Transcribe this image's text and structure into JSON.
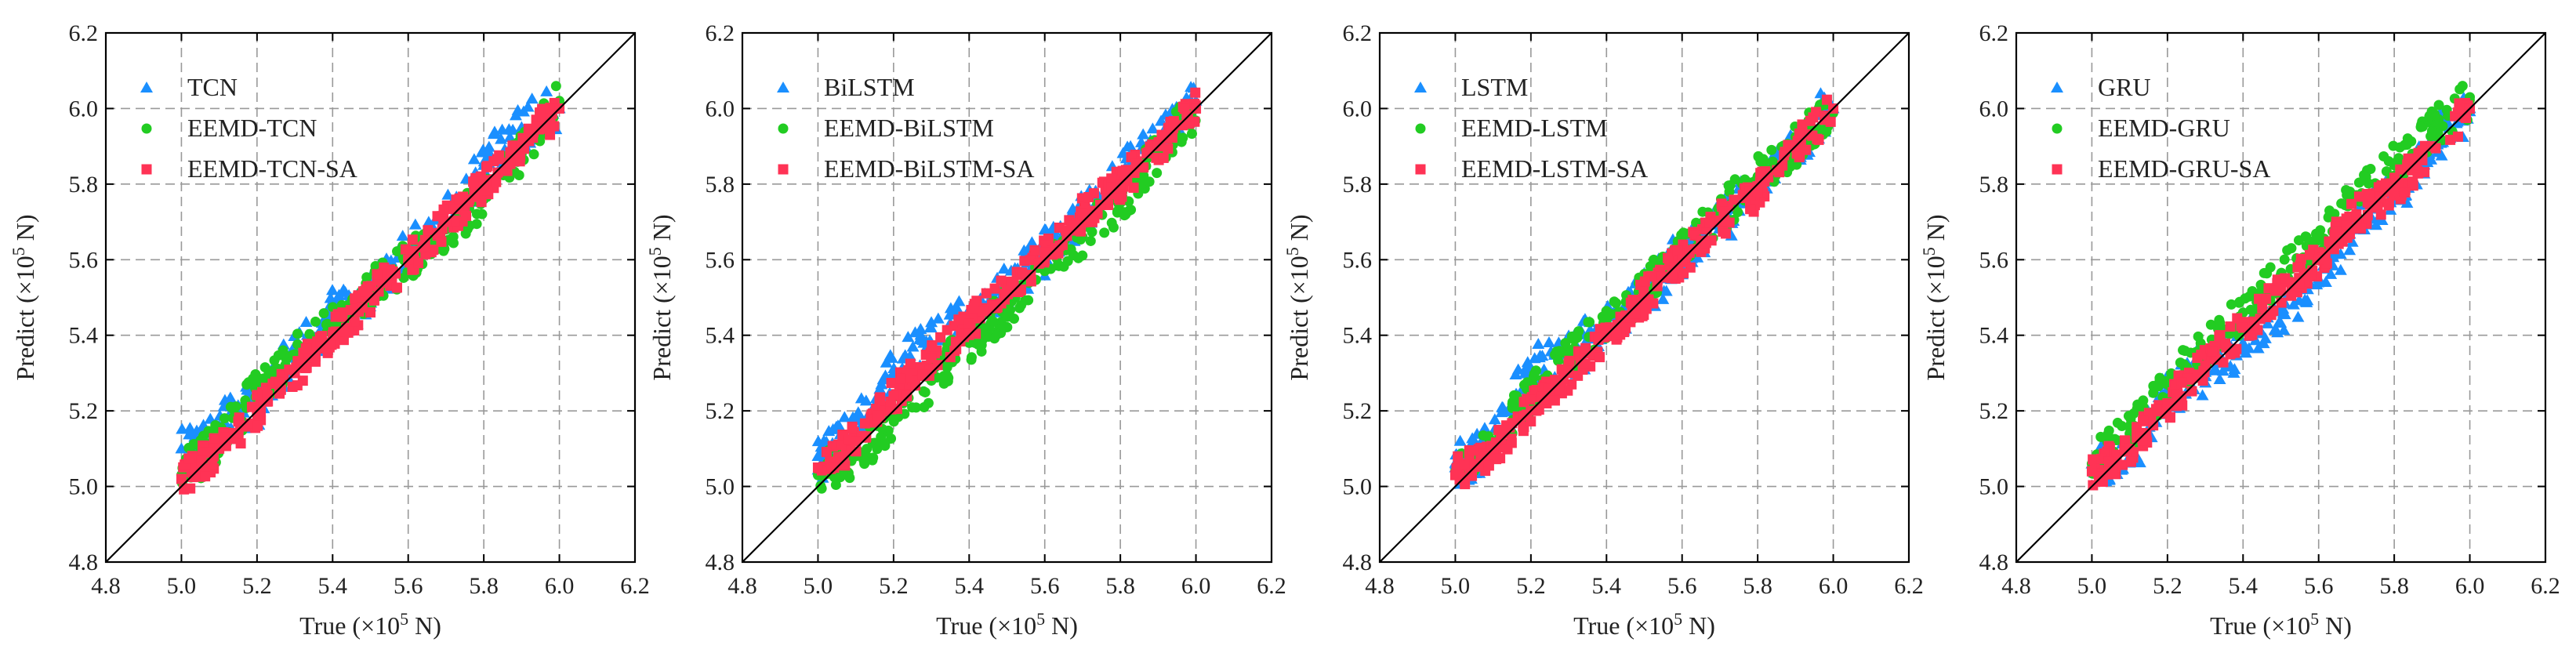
{
  "figure": {
    "axis": {
      "x_label_main": "True (×10",
      "x_label_exp": "5",
      "x_label_tail": " N)",
      "y_label_main": "Predict (×10",
      "y_label_exp": "5",
      "y_label_tail": " N)"
    }
  },
  "colors": {
    "base": "#1a8fff",
    "eemd": "#22cc22",
    "eemd_sa": "#ff3355",
    "grid": "#999999",
    "diagonal": "#000000"
  },
  "chart_data": [
    {
      "type": "scatter",
      "xlim": [
        4.8,
        6.2
      ],
      "ylim": [
        4.8,
        6.2
      ],
      "xticks": [
        "4.8",
        "5.0",
        "5.2",
        "5.4",
        "5.6",
        "5.8",
        "6.0",
        "6.2"
      ],
      "yticks": [
        "4.8",
        "5.0",
        "5.2",
        "5.4",
        "5.6",
        "5.8",
        "6.0",
        "6.2"
      ],
      "grid": true,
      "legend_position": "top-left",
      "series": [
        {
          "name": "TCN",
          "marker": "triangle",
          "color": "#1a8fff",
          "points": [
            [
              5.0,
              5.1
            ],
            [
              5.05,
              5.12
            ],
            [
              5.1,
              5.16
            ],
            [
              5.2,
              5.22
            ],
            [
              5.3,
              5.34
            ],
            [
              5.4,
              5.45
            ],
            [
              5.5,
              5.5
            ],
            [
              5.6,
              5.62
            ],
            [
              5.7,
              5.7
            ],
            [
              5.8,
              5.85
            ],
            [
              5.9,
              5.95
            ],
            [
              6.0,
              6.0
            ]
          ]
        },
        {
          "name": "EEMD-TCN",
          "marker": "circle",
          "color": "#22cc22",
          "points": [
            [
              5.0,
              5.03
            ],
            [
              5.1,
              5.12
            ],
            [
              5.2,
              5.25
            ],
            [
              5.3,
              5.35
            ],
            [
              5.4,
              5.42
            ],
            [
              5.5,
              5.52
            ],
            [
              5.6,
              5.6
            ],
            [
              5.7,
              5.68
            ],
            [
              5.8,
              5.76
            ],
            [
              5.9,
              5.88
            ],
            [
              6.0,
              6.02
            ]
          ]
        },
        {
          "name": "EEMD-TCN-SA",
          "marker": "square",
          "color": "#ff3355",
          "points": [
            [
              5.0,
              5.02
            ],
            [
              5.1,
              5.1
            ],
            [
              5.2,
              5.2
            ],
            [
              5.3,
              5.3
            ],
            [
              5.4,
              5.4
            ],
            [
              5.5,
              5.5
            ],
            [
              5.6,
              5.6
            ],
            [
              5.7,
              5.7
            ],
            [
              5.8,
              5.8
            ],
            [
              5.9,
              5.9
            ],
            [
              6.0,
              6.0
            ]
          ]
        }
      ]
    },
    {
      "type": "scatter",
      "xlim": [
        4.8,
        6.2
      ],
      "ylim": [
        4.8,
        6.2
      ],
      "xticks": [
        "4.8",
        "5.0",
        "5.2",
        "5.4",
        "5.6",
        "5.8",
        "6.0",
        "6.2"
      ],
      "yticks": [
        "4.8",
        "5.0",
        "5.2",
        "5.4",
        "5.6",
        "5.8",
        "6.0",
        "6.2"
      ],
      "grid": true,
      "legend_position": "top-left",
      "series": [
        {
          "name": "BiLSTM",
          "marker": "triangle",
          "color": "#1a8fff",
          "points": [
            [
              5.0,
              5.08
            ],
            [
              5.1,
              5.14
            ],
            [
              5.2,
              5.3
            ],
            [
              5.3,
              5.38
            ],
            [
              5.4,
              5.45
            ],
            [
              5.5,
              5.52
            ],
            [
              5.6,
              5.62
            ],
            [
              5.7,
              5.72
            ],
            [
              5.8,
              5.82
            ],
            [
              5.9,
              5.92
            ],
            [
              6.0,
              6.02
            ]
          ]
        },
        {
          "name": "EEMD-BiLSTM",
          "marker": "circle",
          "color": "#22cc22",
          "points": [
            [
              5.0,
              5.03
            ],
            [
              5.1,
              5.08
            ],
            [
              5.2,
              5.18
            ],
            [
              5.3,
              5.28
            ],
            [
              5.4,
              5.38
            ],
            [
              5.5,
              5.47
            ],
            [
              5.6,
              5.57
            ],
            [
              5.7,
              5.66
            ],
            [
              5.8,
              5.75
            ],
            [
              5.9,
              5.88
            ],
            [
              6.0,
              6.0
            ]
          ]
        },
        {
          "name": "EEMD-BiLSTM-SA",
          "marker": "square",
          "color": "#ff3355",
          "points": [
            [
              5.0,
              5.05
            ],
            [
              5.1,
              5.12
            ],
            [
              5.2,
              5.24
            ],
            [
              5.3,
              5.34
            ],
            [
              5.4,
              5.43
            ],
            [
              5.5,
              5.52
            ],
            [
              5.6,
              5.62
            ],
            [
              5.7,
              5.72
            ],
            [
              5.8,
              5.8
            ],
            [
              5.9,
              5.9
            ],
            [
              6.0,
              6.0
            ]
          ]
        }
      ]
    },
    {
      "type": "scatter",
      "xlim": [
        4.8,
        6.2
      ],
      "ylim": [
        4.8,
        6.2
      ],
      "xticks": [
        "4.8",
        "5.0",
        "5.2",
        "5.4",
        "5.6",
        "5.8",
        "6.0",
        "6.2"
      ],
      "yticks": [
        "4.8",
        "5.0",
        "5.2",
        "5.4",
        "5.6",
        "5.8",
        "6.0",
        "6.2"
      ],
      "grid": true,
      "legend_position": "top-left",
      "series": [
        {
          "name": "LSTM",
          "marker": "triangle",
          "color": "#1a8fff",
          "points": [
            [
              5.0,
              5.05
            ],
            [
              5.1,
              5.12
            ],
            [
              5.2,
              5.3
            ],
            [
              5.3,
              5.34
            ],
            [
              5.4,
              5.42
            ],
            [
              5.5,
              5.52
            ],
            [
              5.6,
              5.6
            ],
            [
              5.7,
              5.7
            ],
            [
              5.8,
              5.8
            ],
            [
              5.9,
              5.9
            ],
            [
              6.0,
              6.0
            ]
          ]
        },
        {
          "name": "EEMD-LSTM",
          "marker": "circle",
          "color": "#22cc22",
          "points": [
            [
              5.0,
              5.04
            ],
            [
              5.1,
              5.12
            ],
            [
              5.2,
              5.24
            ],
            [
              5.3,
              5.34
            ],
            [
              5.4,
              5.44
            ],
            [
              5.5,
              5.52
            ],
            [
              5.6,
              5.62
            ],
            [
              5.7,
              5.72
            ],
            [
              5.8,
              5.82
            ],
            [
              5.9,
              5.9
            ],
            [
              6.0,
              6.0
            ]
          ]
        },
        {
          "name": "EEMD-LSTM-SA",
          "marker": "square",
          "color": "#ff3355",
          "points": [
            [
              5.0,
              5.03
            ],
            [
              5.1,
              5.1
            ],
            [
              5.2,
              5.2
            ],
            [
              5.3,
              5.3
            ],
            [
              5.4,
              5.4
            ],
            [
              5.5,
              5.5
            ],
            [
              5.6,
              5.6
            ],
            [
              5.7,
              5.7
            ],
            [
              5.8,
              5.78
            ],
            [
              5.9,
              5.9
            ],
            [
              6.0,
              6.0
            ]
          ]
        }
      ]
    },
    {
      "type": "scatter",
      "xlim": [
        4.8,
        6.2
      ],
      "ylim": [
        4.8,
        6.2
      ],
      "xticks": [
        "4.8",
        "5.0",
        "5.2",
        "5.4",
        "5.6",
        "5.8",
        "6.0",
        "6.2"
      ],
      "yticks": [
        "4.8",
        "5.0",
        "5.2",
        "5.4",
        "5.6",
        "5.8",
        "6.0",
        "6.2"
      ],
      "grid": true,
      "legend_position": "top-left",
      "series": [
        {
          "name": "GRU",
          "marker": "triangle",
          "color": "#1a8fff",
          "points": [
            [
              5.0,
              5.06
            ],
            [
              5.1,
              5.08
            ],
            [
              5.2,
              5.25
            ],
            [
              5.3,
              5.32
            ],
            [
              5.4,
              5.38
            ],
            [
              5.5,
              5.47
            ],
            [
              5.6,
              5.55
            ],
            [
              5.7,
              5.68
            ],
            [
              5.8,
              5.78
            ],
            [
              5.9,
              5.9
            ],
            [
              6.0,
              6.0
            ]
          ]
        },
        {
          "name": "EEMD-GRU",
          "marker": "circle",
          "color": "#22cc22",
          "points": [
            [
              5.0,
              5.06
            ],
            [
              5.1,
              5.14
            ],
            [
              5.2,
              5.27
            ],
            [
              5.3,
              5.36
            ],
            [
              5.4,
              5.46
            ],
            [
              5.5,
              5.56
            ],
            [
              5.6,
              5.66
            ],
            [
              5.7,
              5.76
            ],
            [
              5.8,
              5.85
            ],
            [
              5.9,
              5.94
            ],
            [
              6.0,
              6.03
            ]
          ]
        },
        {
          "name": "EEMD-GRU-SA",
          "marker": "square",
          "color": "#ff3355",
          "points": [
            [
              5.0,
              5.04
            ],
            [
              5.1,
              5.1
            ],
            [
              5.2,
              5.22
            ],
            [
              5.3,
              5.32
            ],
            [
              5.4,
              5.42
            ],
            [
              5.5,
              5.52
            ],
            [
              5.6,
              5.6
            ],
            [
              5.7,
              5.72
            ],
            [
              5.8,
              5.78
            ],
            [
              5.9,
              5.9
            ],
            [
              6.0,
              6.0
            ]
          ]
        }
      ]
    }
  ]
}
